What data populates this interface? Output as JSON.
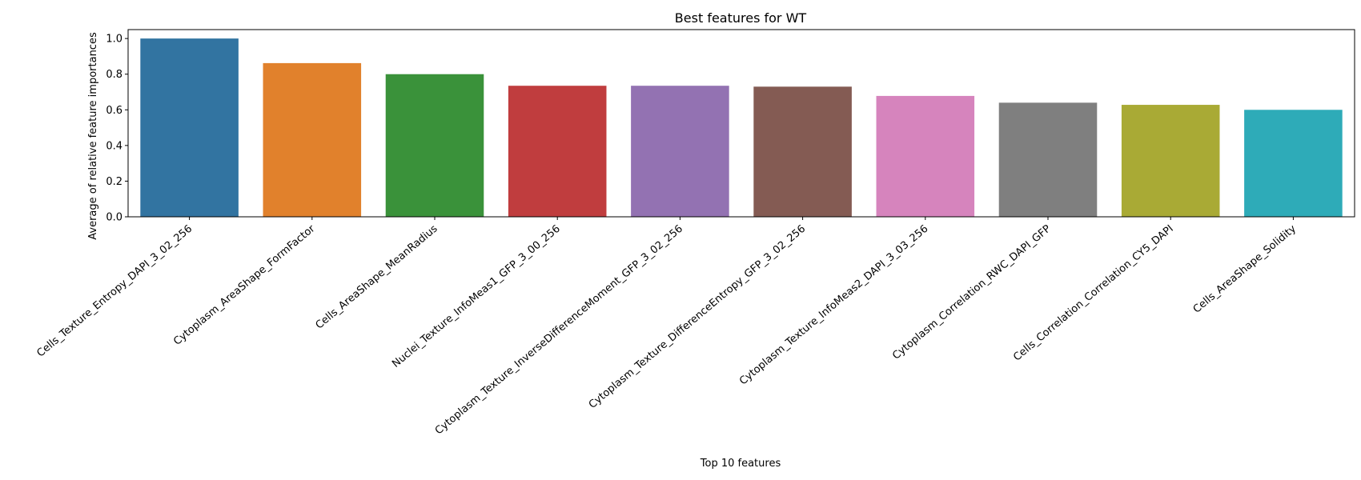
{
  "chart_data": {
    "type": "bar",
    "title": "Best features for WT",
    "xlabel": "Top 10 features",
    "ylabel": "Average of relative feature importances",
    "ylim": [
      0,
      1.05
    ],
    "yticks": [
      0.0,
      0.2,
      0.4,
      0.6,
      0.8,
      1.0
    ],
    "ytick_labels": [
      "0.0",
      "0.2",
      "0.4",
      "0.6",
      "0.8",
      "1.0"
    ],
    "grid": false,
    "categories": [
      "Cells_Texture_Entropy_DAPI_3_02_256",
      "Cytoplasm_AreaShape_FormFactor",
      "Cells_AreaShape_MeanRadius",
      "Nuclei_Texture_InfoMeas1_GFP_3_00_256",
      "Cytoplasm_Texture_InverseDifferenceMoment_GFP_3_02_256",
      "Cytoplasm_Texture_DifferenceEntropy_GFP_3_02_256",
      "Cytoplasm_Texture_InfoMeas2_DAPI_3_03_256",
      "Cytoplasm_Correlation_RWC_DAPI_GFP",
      "Cells_Correlation_Correlation_CY5_DAPI",
      "Cells_AreaShape_Solidity"
    ],
    "values": [
      1.0,
      0.862,
      0.8,
      0.735,
      0.735,
      0.73,
      0.678,
      0.64,
      0.628,
      0.6
    ],
    "colors": [
      "#3274a1",
      "#e1812c",
      "#3a923a",
      "#c03d3e",
      "#9372b2",
      "#845b53",
      "#d684bd",
      "#7f7f7f",
      "#a9aa35",
      "#2eabb8"
    ]
  }
}
